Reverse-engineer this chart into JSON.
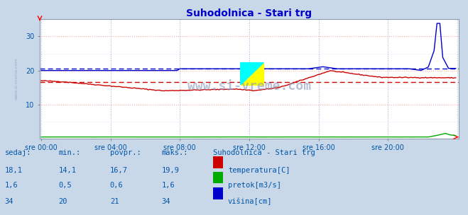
{
  "title": "Suhodolnica - Stari trg",
  "title_color": "#0000cc",
  "fig_bg_color": "#c8d8e8",
  "plot_bg_color": "#ffffff",
  "ylim": [
    0,
    35
  ],
  "yticks": [
    10,
    20,
    30
  ],
  "n_points": 288,
  "xtick_labels": [
    "sre 00:00",
    "sre 04:00",
    "sre 08:00",
    "sre 12:00",
    "sre 16:00",
    "sre 20:00"
  ],
  "xtick_positions": [
    0,
    48,
    96,
    144,
    192,
    240
  ],
  "temp_color": "#cc0000",
  "flow_color": "#00aa00",
  "height_color": "#0000cc",
  "temp_avg": 16.7,
  "height_avg": 20.5,
  "watermark": "www.si-vreme.com",
  "left_label": "www.si-vreme.com",
  "stats_headers": [
    "sedaj:",
    "min.:",
    "povpr.:",
    "maks.:"
  ],
  "stats_temp": [
    "18,1",
    "14,1",
    "16,7",
    "19,9"
  ],
  "stats_flow": [
    "1,6",
    "0,5",
    "0,6",
    "1,6"
  ],
  "stats_height": [
    "34",
    "20",
    "21",
    "34"
  ],
  "legend_title": "Suhodolnica - Stari trg",
  "legend_items": [
    "temperatura[C]",
    "pretok[m3/s]",
    "višina[cm]"
  ],
  "legend_colors": [
    "#cc0000",
    "#00aa00",
    "#0000cc"
  ],
  "vgrid_color": "#aaaadd",
  "hgrid_major_color": "#ffaaaa",
  "hgrid_minor_color": "#ddddee",
  "text_color": "#0055aa"
}
